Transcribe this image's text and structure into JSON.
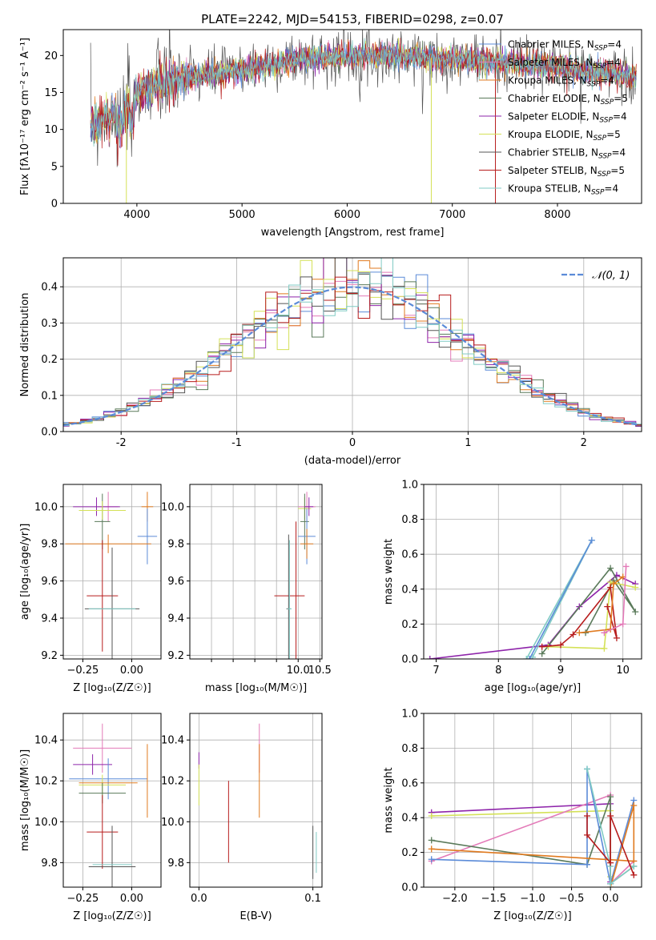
{
  "colors": {
    "chabrier_miles": "#5b8bd8",
    "salpeter_miles": "#e37ab8",
    "kroupa_miles": "#e07a1f",
    "chabrier_elodie": "#5a7a5a",
    "salpeter_elodie": "#8e24aa",
    "kroupa_elodie": "#d4e157",
    "chabrier_stelib": "#555555",
    "salpeter_stelib": "#b71c1c",
    "kroupa_stelib": "#80cbc4",
    "normal": "#5b8bd8"
  },
  "chart_data": [
    {
      "id": "spectrum",
      "type": "line",
      "title": "PLATE=2242, MJD=54153, FIBERID=0298, z=0.07",
      "xlabel": "wavelength [Angstrom, rest frame]",
      "ylabel": "Flux [fλ10⁻¹⁷ erg cm⁻² s⁻¹ A⁻¹]",
      "xlim": [
        3300,
        8800
      ],
      "ylim": [
        0,
        23.5
      ],
      "xticks": [
        4000,
        5000,
        6000,
        7000,
        8000
      ],
      "yticks": [
        0,
        5,
        10,
        15,
        20
      ],
      "legend": "top-right",
      "legend_entries": [
        {
          "label": "Chabrier MILES, N",
          "sub": "SSP",
          "tail": "=4",
          "color": "chabrier_miles"
        },
        {
          "label": "Salpeter MILES, N",
          "sub": "SSP",
          "tail": "=4",
          "color": "salpeter_miles"
        },
        {
          "label": "Kroupa MILES, N",
          "sub": "SSP",
          "tail": "=4",
          "color": "kroupa_miles"
        },
        {
          "label": "Chabrier ELODIE, N",
          "sub": "SSP",
          "tail": "=5",
          "color": "chabrier_elodie"
        },
        {
          "label": "Salpeter ELODIE, N",
          "sub": "SSP",
          "tail": "=4",
          "color": "salpeter_elodie"
        },
        {
          "label": "Kroupa ELODIE, N",
          "sub": "SSP",
          "tail": "=5",
          "color": "kroupa_elodie"
        },
        {
          "label": "Chabrier STELIB, N",
          "sub": "SSP",
          "tail": "=4",
          "color": "chabrier_stelib"
        },
        {
          "label": "Salpeter STELIB, N",
          "sub": "SSP",
          "tail": "=5",
          "color": "salpeter_stelib"
        },
        {
          "label": "Kroupa STELIB, N",
          "sub": "SSP",
          "tail": "=4",
          "color": "kroupa_stelib"
        }
      ],
      "continuum": [
        [
          3560,
          10.5
        ],
        [
          3700,
          11.5
        ],
        [
          3900,
          13
        ],
        [
          4000,
          15
        ],
        [
          4200,
          16
        ],
        [
          4500,
          17
        ],
        [
          5000,
          18
        ],
        [
          5500,
          19.5
        ],
        [
          6000,
          20
        ],
        [
          6500,
          20
        ],
        [
          7000,
          19.5
        ],
        [
          7500,
          19
        ],
        [
          8000,
          18.5
        ],
        [
          8500,
          17.5
        ],
        [
          8750,
          17
        ]
      ],
      "data_segment": [
        3560,
        8750
      ],
      "glitches": [
        [
          3900,
          0
        ],
        [
          6800,
          0
        ],
        [
          7410,
          0
        ]
      ]
    },
    {
      "id": "residuals",
      "type": "histogram",
      "xlabel": "(data-model)/error",
      "ylabel": "Normed distribution",
      "xlim": [
        -2.5,
        2.5
      ],
      "ylim": [
        0,
        0.48
      ],
      "xticks": [
        -2,
        -1,
        0,
        1,
        2
      ],
      "yticks": [
        0,
        0.1,
        0.2,
        0.3,
        0.4
      ],
      "bin_width": 0.1,
      "legend": "top-right",
      "normal_label": "𝒩(0, 1)"
    },
    {
      "id": "z_age",
      "type": "errorbar",
      "xlabel": "Z [log₁₀(Z/Z☉)]",
      "ylabel": "age  [log₁₀(age/yr)]",
      "xlim": [
        -0.35,
        0.15
      ],
      "ylim": [
        9.18,
        10.12
      ],
      "xticks": [
        -0.25,
        0.0
      ],
      "xticklabels": [
        "−0.25",
        "0.00"
      ],
      "yticks": [
        9.2,
        9.4,
        9.6,
        9.8,
        10.0
      ],
      "points": [
        {
          "x": -0.12,
          "y": 10.0,
          "xerr": 0.05,
          "yerr": 0.08,
          "c": "salpeter_miles"
        },
        {
          "x": 0.08,
          "y": 10.0,
          "xerr": 0.03,
          "yerr": 0.08,
          "c": "kroupa_miles"
        },
        {
          "x": -0.15,
          "y": 9.92,
          "xerr": 0.04,
          "yerr": 0.15,
          "c": "chabrier_elodie"
        },
        {
          "x": -0.18,
          "y": 10.0,
          "xerr": 0.12,
          "yerr": 0.05,
          "c": "salpeter_elodie"
        },
        {
          "x": 0.08,
          "y": 9.84,
          "xerr": 0.05,
          "yerr": 0.15,
          "c": "chabrier_miles"
        },
        {
          "x": -0.12,
          "y": 9.8,
          "xerr": 0.22,
          "yerr": 0.05,
          "c": "kroupa_miles"
        },
        {
          "x": -0.15,
          "y": 9.98,
          "xerr": 0.12,
          "yerr": 0.05,
          "c": "kroupa_elodie"
        },
        {
          "x": -0.15,
          "y": 9.52,
          "xerr": 0.08,
          "yerr": 0.3,
          "c": "salpeter_stelib"
        },
        {
          "x": -0.1,
          "y": 9.45,
          "xerr": 0.14,
          "yerr": 0.33,
          "c": "chabrier_stelib"
        },
        {
          "x": -0.1,
          "y": 9.45,
          "xerr": 0.12,
          "yerr": 0.0,
          "c": "kroupa_stelib"
        }
      ]
    },
    {
      "id": "mass_age",
      "type": "errorbar",
      "xlabel": "mass [log₁₀(M/M☉)]",
      "ylabel": "",
      "xlim": [
        7.5,
        10.55
      ],
      "ylim": [
        9.18,
        10.12
      ],
      "xticks": [
        8.0,
        8.5,
        9.0,
        9.5,
        10.0,
        10.5
      ],
      "xticklabels": [
        "",
        "",
        "",
        "",
        "10.0",
        "10.5"
      ],
      "yticks": [
        9.2,
        9.4,
        9.6,
        9.8,
        10.0
      ],
      "points": [
        {
          "x": 10.2,
          "y": 10.0,
          "xerr": 0.2,
          "yerr": 0.08,
          "c": "salpeter_miles"
        },
        {
          "x": 10.15,
          "y": 9.99,
          "xerr": 0.15,
          "yerr": 0.06,
          "c": "kroupa_elodie"
        },
        {
          "x": 10.15,
          "y": 9.92,
          "xerr": 0.1,
          "yerr": 0.15,
          "c": "chabrier_elodie"
        },
        {
          "x": 10.25,
          "y": 10.0,
          "xerr": 0.1,
          "yerr": 0.05,
          "c": "salpeter_elodie"
        },
        {
          "x": 10.2,
          "y": 9.84,
          "xerr": 0.2,
          "yerr": 0.15,
          "c": "chabrier_miles"
        },
        {
          "x": 10.2,
          "y": 9.8,
          "xerr": 0.15,
          "yerr": 0.08,
          "c": "kroupa_miles"
        },
        {
          "x": 9.8,
          "y": 9.52,
          "xerr": 0.35,
          "yerr": 0.0,
          "c": "salpeter_stelib"
        },
        {
          "x": 9.95,
          "y": 9.52,
          "xerr": 0.0,
          "yerr": 0.4,
          "c": "salpeter_stelib"
        },
        {
          "x": 9.78,
          "y": 9.45,
          "xerr": 0.05,
          "yerr": 0.4,
          "c": "chabrier_stelib"
        },
        {
          "x": 9.8,
          "y": 9.45,
          "xerr": 0.05,
          "yerr": 0.37,
          "c": "kroupa_stelib"
        }
      ]
    },
    {
      "id": "age_weight",
      "type": "line",
      "xlabel": "age  [log₁₀(age/yr)]",
      "ylabel": "mass weight",
      "xlim": [
        6.8,
        10.3
      ],
      "ylim": [
        0,
        1.0
      ],
      "xticks": [
        7,
        8,
        9,
        10
      ],
      "yticks": [
        0,
        0.2,
        0.4,
        0.6,
        0.8,
        1.0
      ],
      "yticklabels": [
        "0.0",
        "0.2",
        "0.4",
        "0.6",
        "0.8",
        "1.0"
      ],
      "series": [
        {
          "c": "salpeter_elodie",
          "x": [
            6.9,
            8.8,
            9.3,
            9.9,
            10.2
          ],
          "y": [
            0.0,
            0.08,
            0.3,
            0.48,
            0.43
          ]
        },
        {
          "c": "kroupa_stelib",
          "x": [
            8.45,
            9.5,
            8.55
          ],
          "y": [
            0.0,
            0.68,
            0.01
          ]
        },
        {
          "c": "chabrier_miles",
          "x": [
            8.5,
            9.5,
            8.5
          ],
          "y": [
            0.0,
            0.68,
            0.0
          ]
        },
        {
          "c": "chabrier_elodie",
          "x": [
            8.7,
            9.8,
            10.2,
            9.85,
            9.4
          ],
          "y": [
            0.03,
            0.52,
            0.27,
            0.45,
            0.15
          ]
        },
        {
          "c": "kroupa_elodie",
          "x": [
            8.8,
            9.7,
            9.8,
            10.2
          ],
          "y": [
            0.07,
            0.06,
            0.44,
            0.41
          ]
        },
        {
          "c": "salpeter_stelib",
          "x": [
            8.7,
            9.0,
            9.2,
            9.8,
            9.9,
            9.75
          ],
          "y": [
            0.07,
            0.08,
            0.14,
            0.41,
            0.12,
            0.3
          ]
        },
        {
          "c": "kroupa_miles",
          "x": [
            9.3,
            9.8,
            9.85,
            10.0
          ],
          "y": [
            0.15,
            0.17,
            0.43,
            0.47
          ]
        },
        {
          "c": "salpeter_miles",
          "x": [
            9.7,
            10.0,
            10.05
          ],
          "y": [
            0.15,
            0.2,
            0.53
          ]
        }
      ]
    },
    {
      "id": "z_mass",
      "type": "errorbar",
      "xlabel": "Z [log₁₀(Z/Z☉)]",
      "ylabel": "mass [log₁₀(M/M☉)]",
      "xlim": [
        -0.35,
        0.15
      ],
      "ylim": [
        9.68,
        10.53
      ],
      "xticks": [
        -0.25,
        0.0
      ],
      "xticklabels": [
        "−0.25",
        "0.00"
      ],
      "yticks": [
        9.8,
        10.0,
        10.2,
        10.4
      ],
      "points": [
        {
          "x": -0.15,
          "y": 10.36,
          "xerr": 0.15,
          "yerr": 0.12,
          "c": "salpeter_miles"
        },
        {
          "x": -0.2,
          "y": 10.28,
          "xerr": 0.1,
          "yerr": 0.05,
          "c": "salpeter_elodie"
        },
        {
          "x": -0.12,
          "y": 10.21,
          "xerr": 0.2,
          "yerr": 0.1,
          "c": "chabrier_miles"
        },
        {
          "x": -0.15,
          "y": 10.18,
          "xerr": 0.12,
          "yerr": 0.05,
          "c": "kroupa_elodie"
        },
        {
          "x": 0.08,
          "y": 10.2,
          "xerr": 0.0,
          "yerr": 0.18,
          "c": "kroupa_miles"
        },
        {
          "x": -0.12,
          "y": 10.19,
          "xerr": 0.15,
          "yerr": 0.0,
          "c": "kroupa_miles"
        },
        {
          "x": -0.15,
          "y": 10.14,
          "xerr": 0.12,
          "yerr": 0.05,
          "c": "chabrier_elodie"
        },
        {
          "x": -0.15,
          "y": 9.95,
          "xerr": 0.08,
          "yerr": 0.18,
          "c": "salpeter_stelib"
        },
        {
          "x": -0.1,
          "y": 9.78,
          "xerr": 0.12,
          "yerr": 0.2,
          "c": "chabrier_stelib"
        },
        {
          "x": -0.1,
          "y": 9.79,
          "xerr": 0.1,
          "yerr": 0.0,
          "c": "kroupa_stelib"
        }
      ]
    },
    {
      "id": "ebv_mass",
      "type": "errorbar",
      "xlabel": "E(B-V)",
      "ylabel": "",
      "xlim": [
        -0.008,
        0.108
      ],
      "ylim": [
        9.68,
        10.53
      ],
      "xticks": [
        0.0,
        0.1
      ],
      "xticklabels": [
        "0.0",
        "0.1"
      ],
      "yticks": [
        9.8,
        10.0,
        10.2,
        10.4
      ],
      "points": [
        {
          "x": 0.0,
          "y": 10.3,
          "xerr": 0,
          "yerr": 0.04,
          "c": "salpeter_elodie"
        },
        {
          "x": 0.0,
          "y": 10.18,
          "xerr": 0,
          "yerr": 0.1,
          "c": "kroupa_elodie"
        },
        {
          "x": 0.026,
          "y": 10.0,
          "xerr": 0,
          "yerr": 0.2,
          "c": "salpeter_stelib"
        },
        {
          "x": 0.053,
          "y": 10.36,
          "xerr": 0,
          "yerr": 0.12,
          "c": "salpeter_miles"
        },
        {
          "x": 0.053,
          "y": 10.2,
          "xerr": 0,
          "yerr": 0.18,
          "c": "kroupa_miles"
        },
        {
          "x": 0.1,
          "y": 9.85,
          "xerr": 0,
          "yerr": 0.13,
          "c": "chabrier_stelib"
        },
        {
          "x": 0.103,
          "y": 9.85,
          "xerr": 0,
          "yerr": 0.1,
          "c": "kroupa_stelib"
        }
      ]
    },
    {
      "id": "z_weight",
      "type": "line",
      "xlabel": "Z [log₁₀(Z/Z☉)]",
      "ylabel": "mass weight",
      "xlim": [
        -2.4,
        0.4
      ],
      "ylim": [
        0,
        1.0
      ],
      "xticks": [
        -2.0,
        -1.5,
        -1.0,
        -0.5,
        0.0
      ],
      "xticklabels": [
        "−2.0",
        "−1.5",
        "−1.0",
        "−0.5",
        "0.0"
      ],
      "yticks": [
        0,
        0.2,
        0.4,
        0.6,
        0.8,
        1.0
      ],
      "yticklabels": [
        "0.0",
        "0.2",
        "0.4",
        "0.6",
        "0.8",
        "1.0"
      ],
      "series": [
        {
          "c": "salpeter_elodie",
          "x": [
            -2.3,
            0.0,
            0.0
          ],
          "y": [
            0.43,
            0.48,
            0.03
          ]
        },
        {
          "c": "kroupa_elodie",
          "x": [
            -2.3,
            0.0,
            0.0
          ],
          "y": [
            0.41,
            0.44,
            0.06
          ]
        },
        {
          "c": "salpeter_miles",
          "x": [
            -2.3,
            0.0,
            0.0,
            0.3
          ],
          "y": [
            0.15,
            0.53,
            0.02,
            0.15
          ]
        },
        {
          "c": "chabrier_elodie",
          "x": [
            -2.3,
            -0.3,
            0.0,
            0.0,
            0.3
          ],
          "y": [
            0.27,
            0.13,
            0.52,
            0.02,
            0.12
          ]
        },
        {
          "c": "chabrier_miles",
          "x": [
            -2.3,
            -0.3,
            -0.3,
            0.0,
            0.3
          ],
          "y": [
            0.16,
            0.13,
            0.68,
            0.02,
            0.5
          ]
        },
        {
          "c": "kroupa_miles",
          "x": [
            -2.3,
            0.3,
            0.3,
            0.0
          ],
          "y": [
            0.22,
            0.15,
            0.47,
            0.0
          ]
        },
        {
          "c": "kroupa_stelib",
          "x": [
            -0.3,
            0.0,
            0.0,
            0.3
          ],
          "y": [
            0.68,
            0.12,
            0.02,
            0.12
          ]
        },
        {
          "c": "salpeter_stelib",
          "x": [
            -0.3,
            -0.3,
            0.0,
            0.0,
            0.3
          ],
          "y": [
            0.41,
            0.3,
            0.14,
            0.41,
            0.07
          ]
        }
      ]
    }
  ]
}
